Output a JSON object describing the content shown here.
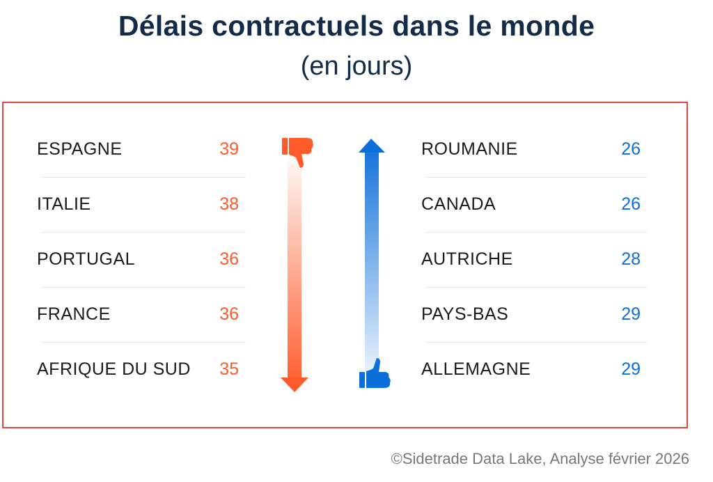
{
  "title": "Délais contractuels dans le monde",
  "subtitle": "(en jours)",
  "colors": {
    "worst": "#ff5a2a",
    "best": "#0c6fd9",
    "border": "#e8473d",
    "title": "#132b47"
  },
  "worst": [
    {
      "country": "ESPAGNE",
      "days": "39"
    },
    {
      "country": "ITALIE",
      "days": "38"
    },
    {
      "country": "PORTUGAL",
      "days": "36"
    },
    {
      "country": "FRANCE",
      "days": "36"
    },
    {
      "country": "AFRIQUE DU SUD",
      "days": "35"
    }
  ],
  "best": [
    {
      "country": "ROUMANIE",
      "days": "26"
    },
    {
      "country": "CANADA",
      "days": "26"
    },
    {
      "country": "AUTRICHE",
      "days": "28"
    },
    {
      "country": "PAYS-BAS",
      "days": "29"
    },
    {
      "country": "ALLEMAGNE",
      "days": "29"
    }
  ],
  "footer": "©Sidetrade Data Lake, Analyse février 2026"
}
